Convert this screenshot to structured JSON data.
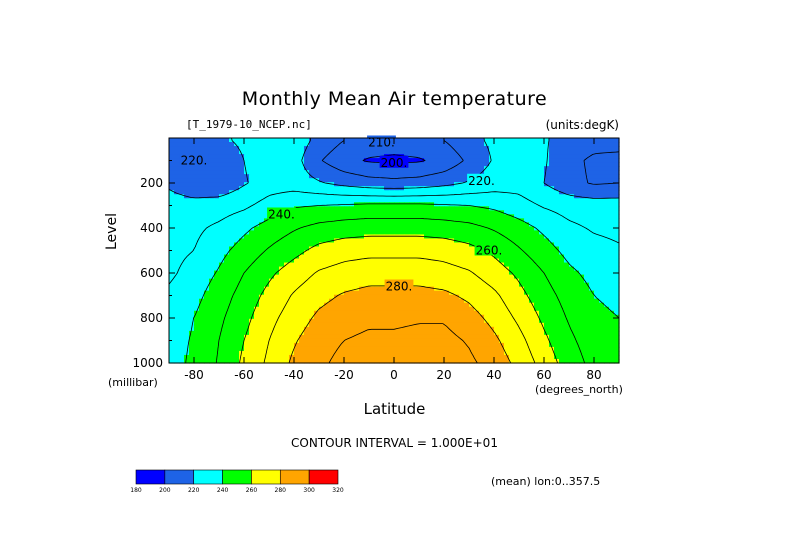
{
  "chart_data": {
    "type": "heatmap",
    "subtype": "filled-contour",
    "title": "Monthly Mean Air temperature",
    "file_label": "[T_1979-10_NCEP.nc]",
    "units_label": "(units:degK)",
    "xlabel": "Latitude",
    "x_unit": "(degrees_north)",
    "ylabel": "Level",
    "y_unit": "(millibar)",
    "xlim": [
      -90,
      90
    ],
    "ylim": [
      0,
      1000
    ],
    "y_inverted": true,
    "x_ticks": [
      -80,
      -60,
      -40,
      -20,
      0,
      20,
      40,
      60,
      80
    ],
    "x_tick_labels": [
      "-80",
      "-60",
      "-40",
      "-20",
      "0",
      "20",
      "40",
      "60",
      "80"
    ],
    "y_ticks": [
      200,
      400,
      600,
      800,
      1000
    ],
    "y_tick_labels": [
      "200",
      "400",
      "600",
      "800",
      "1000"
    ],
    "contour_interval_text": "CONTOUR INTERVAL = 1.000E+01",
    "mean_note": "(mean) lon:0..357.5",
    "levels": [
      180,
      200,
      220,
      240,
      260,
      280,
      300,
      320
    ],
    "level_labels": [
      "180",
      "200",
      "220",
      "240",
      "260",
      "280",
      "300",
      "320"
    ],
    "band_colors": [
      "#0000ff",
      "#1e63e6",
      "#00ffff",
      "#00ff00",
      "#ffff00",
      "#ffa500",
      "#ff0000"
    ],
    "contour_labels": [
      {
        "text": "220.",
        "lat": -80,
        "level": 100
      },
      {
        "text": "210.",
        "lat": -5,
        "level": 20
      },
      {
        "text": "200.",
        "lat": 0,
        "level": 110
      },
      {
        "text": "220.",
        "lat": 35,
        "level": 190
      },
      {
        "text": "240.",
        "lat": -45,
        "level": 340
      },
      {
        "text": "260.",
        "lat": 38,
        "level": 500
      },
      {
        "text": "280.",
        "lat": 2,
        "level": 660
      }
    ],
    "temperature_grid": {
      "lat": [
        -90,
        -80,
        -70,
        -60,
        -50,
        -40,
        -30,
        -20,
        -10,
        0,
        10,
        20,
        30,
        40,
        50,
        60,
        70,
        80,
        90
      ],
      "level": [
        10,
        100,
        200,
        300,
        400,
        500,
        600,
        700,
        800,
        900,
        1000
      ],
      "values_degK": [
        [
          217,
          217,
          218,
          222,
          226,
          226,
          217,
          210,
          206,
          205,
          206,
          210,
          217,
          222,
          226,
          221,
          216,
          214,
          214
        ],
        [
          215,
          210,
          212,
          220,
          226,
          224,
          211,
          203,
          199,
          198,
          199,
          203,
          212,
          221,
          226,
          221,
          213,
          208,
          207
        ],
        [
          218,
          212,
          212,
          219,
          225,
          225,
          221,
          217,
          214,
          213,
          214,
          217,
          221,
          225,
          226,
          220,
          213,
          209,
          210
        ],
        [
          225,
          224,
          225,
          228,
          234,
          239,
          240,
          241,
          242,
          242,
          242,
          241,
          240,
          238,
          234,
          229,
          226,
          225,
          225
        ],
        [
          227,
          228,
          232,
          238,
          244,
          249,
          253,
          255,
          256,
          256,
          256,
          255,
          253,
          249,
          244,
          238,
          232,
          229,
          228
        ],
        [
          227,
          230,
          237,
          244,
          251,
          257,
          263,
          266,
          267,
          267,
          267,
          266,
          263,
          258,
          251,
          244,
          237,
          233,
          231
        ],
        [
          228,
          234,
          241,
          250,
          258,
          265,
          271,
          274,
          276,
          276,
          276,
          274,
          271,
          265,
          258,
          250,
          242,
          237,
          234
        ],
        [
          232,
          237,
          245,
          254,
          263,
          271,
          277,
          281,
          283,
          283,
          283,
          282,
          278,
          272,
          263,
          254,
          246,
          240,
          237
        ],
        [
          235,
          240,
          248,
          257,
          267,
          275,
          282,
          286,
          288,
          288,
          289,
          289,
          284,
          277,
          268,
          258,
          249,
          243,
          240
        ],
        [
          236,
          241,
          250,
          260,
          270,
          279,
          286,
          290,
          292,
          292,
          293,
          293,
          289,
          282,
          273,
          262,
          252,
          245,
          242
        ],
        [
          236,
          242,
          251,
          262,
          272,
          282,
          288,
          293,
          294,
          294,
          296,
          296,
          292,
          286,
          277,
          266,
          255,
          247,
          244
        ]
      ]
    }
  }
}
